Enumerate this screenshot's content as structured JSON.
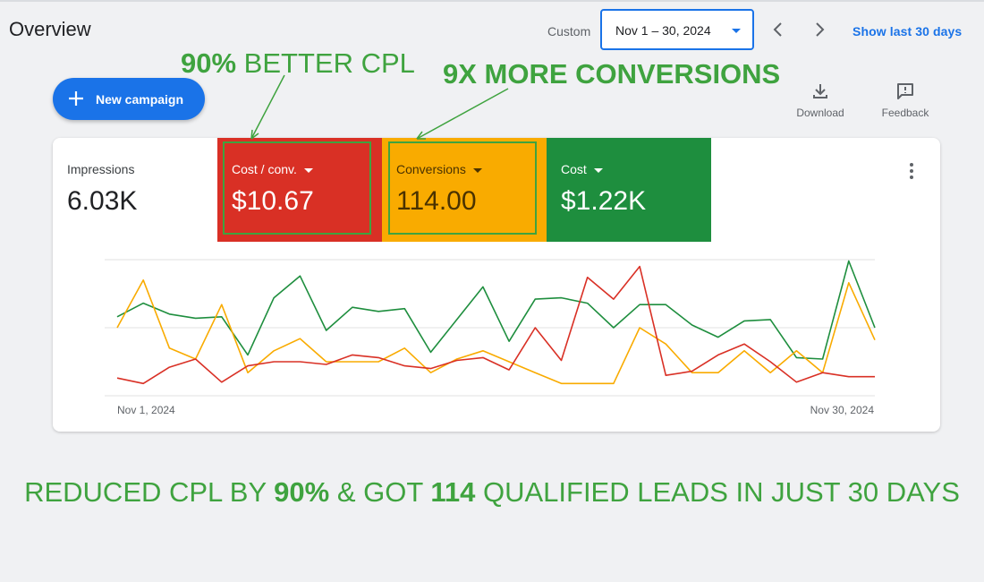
{
  "header": {
    "title": "Overview",
    "custom_label": "Custom",
    "date_range": "Nov 1 – 30, 2024",
    "show_last": "Show last 30 days"
  },
  "annotations": {
    "cpl": {
      "bold": "90%",
      "text": "BETTER CPL"
    },
    "conversions": "9X MORE CONVERSIONS"
  },
  "toolbar": {
    "new_campaign": "New campaign",
    "download": "Download",
    "feedback": "Feedback"
  },
  "metrics": [
    {
      "label": "Impressions",
      "value": "6.03K"
    },
    {
      "label": "Cost / conv.",
      "value": "$10.67"
    },
    {
      "label": "Conversions",
      "value": "114.00"
    },
    {
      "label": "Cost",
      "value": "$1.22K"
    }
  ],
  "chart_data": {
    "type": "line",
    "x": [
      "Nov 1, 2024",
      "Nov 2",
      "Nov 3",
      "Nov 4",
      "Nov 5",
      "Nov 6",
      "Nov 7",
      "Nov 8",
      "Nov 9",
      "Nov 10",
      "Nov 11",
      "Nov 12",
      "Nov 13",
      "Nov 14",
      "Nov 15",
      "Nov 16",
      "Nov 17",
      "Nov 18",
      "Nov 19",
      "Nov 20",
      "Nov 21",
      "Nov 22",
      "Nov 23",
      "Nov 24",
      "Nov 25",
      "Nov 26",
      "Nov 27",
      "Nov 28",
      "Nov 29",
      "Nov 30, 2024"
    ],
    "x_tick_labels": [
      "Nov 1, 2024",
      "Nov 30, 2024"
    ],
    "ylim": [
      0,
      100
    ],
    "grid": true,
    "series": [
      {
        "color": "#1e8e3e",
        "values": [
          58,
          68,
          60,
          57,
          58,
          30,
          72,
          88,
          48,
          65,
          62,
          64,
          32,
          56,
          80,
          40,
          71,
          72,
          68,
          50,
          67,
          67,
          52,
          43,
          55,
          56,
          28,
          27,
          99,
          50
        ]
      },
      {
        "color": "#f9ab00",
        "values": [
          50,
          85,
          35,
          27,
          67,
          17,
          33,
          42,
          25,
          25,
          25,
          35,
          17,
          27,
          33,
          25,
          17,
          9,
          9,
          9,
          50,
          38,
          17,
          17,
          33,
          17,
          33,
          17,
          83,
          41
        ]
      },
      {
        "color": "#d93025",
        "values": [
          13,
          9,
          21,
          27,
          10,
          22,
          25,
          25,
          23,
          30,
          28,
          22,
          20,
          26,
          28,
          19,
          50,
          26,
          87,
          71,
          95,
          15,
          18,
          30,
          38,
          25,
          10,
          17,
          14,
          14
        ]
      }
    ]
  },
  "headline": {
    "p1": "REDUCED CPL BY ",
    "b1": "90%",
    "p2": " & GOT ",
    "b2": "114",
    "p3": " QUALIFIED LEADS IN JUST 30 DAYS"
  }
}
